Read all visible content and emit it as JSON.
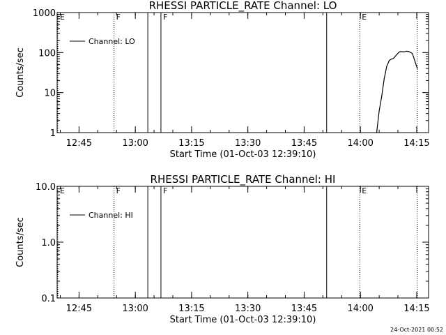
{
  "footer": {
    "timestamp": "24-Oct-2021 00:52"
  },
  "chart_data": [
    {
      "type": "line",
      "title": "RHESSI PARTICLE_RATE Channel: LO",
      "xlabel": "Start Time (01-Oct-03 12:39:10)",
      "ylabel": "Counts/sec",
      "yscale": "log",
      "xlim": [
        "12:39:10",
        "14:18:10"
      ],
      "ylim": [
        1,
        1000
      ],
      "yticks": [
        1,
        10,
        100,
        1000
      ],
      "ytick_labels": [
        "1",
        "10",
        "100",
        "1000"
      ],
      "xticks": [
        "12:45",
        "13:00",
        "13:15",
        "13:30",
        "13:45",
        "14:00",
        "14:15"
      ],
      "legend": {
        "label": "Channel: LO",
        "position": "top-left"
      },
      "grid": false,
      "markers": [
        {
          "time": "12:39:10",
          "label": "E",
          "style": "dotted"
        },
        {
          "time": "12:54:20",
          "label": "F",
          "style": "dotted"
        },
        {
          "time": "13:03:20",
          "label": "",
          "style": "solid"
        },
        {
          "time": "13:06:50",
          "label": "F",
          "style": "solid"
        },
        {
          "time": "13:51:00",
          "label": "",
          "style": "solid"
        },
        {
          "time": "13:59:50",
          "label": "E",
          "style": "dotted"
        },
        {
          "time": "14:15:10",
          "label": "",
          "style": "dotted"
        }
      ],
      "series": [
        {
          "name": "Channel: LO",
          "x": [
            "14:04:20",
            "14:05:00",
            "14:05:40",
            "14:06:20",
            "14:07:00",
            "14:07:40",
            "14:08:10",
            "14:08:50",
            "14:09:30",
            "14:10:10",
            "14:10:40",
            "14:11:30",
            "14:12:20",
            "14:13:00",
            "14:13:50",
            "14:14:30",
            "14:15:10"
          ],
          "values": [
            1,
            3.5,
            8,
            22,
            45,
            63,
            68,
            72,
            85,
            100,
            106,
            104,
            108,
            105,
            95,
            62,
            40
          ]
        }
      ]
    },
    {
      "type": "line",
      "title": "RHESSI PARTICLE_RATE Channel: HI",
      "xlabel": "Start Time (01-Oct-03 12:39:10)",
      "ylabel": "Counts/sec",
      "yscale": "log",
      "xlim": [
        "12:39:10",
        "14:18:10"
      ],
      "ylim": [
        0.1,
        10
      ],
      "yticks": [
        0.1,
        1,
        10
      ],
      "ytick_labels": [
        "0.1",
        "1.0",
        "10.0"
      ],
      "xticks": [
        "12:45",
        "13:00",
        "13:15",
        "13:30",
        "13:45",
        "14:00",
        "14:15"
      ],
      "legend": {
        "label": "Channel: HI",
        "position": "top-left"
      },
      "grid": false,
      "markers": [
        {
          "time": "12:39:10",
          "label": "E",
          "style": "dotted"
        },
        {
          "time": "12:54:20",
          "label": "F",
          "style": "dotted"
        },
        {
          "time": "13:03:20",
          "label": "",
          "style": "solid"
        },
        {
          "time": "13:06:50",
          "label": "F",
          "style": "solid"
        },
        {
          "time": "13:51:00",
          "label": "",
          "style": "solid"
        },
        {
          "time": "13:59:50",
          "label": "E",
          "style": "dotted"
        },
        {
          "time": "14:15:10",
          "label": "",
          "style": "dotted"
        }
      ],
      "series": [
        {
          "name": "Channel: HI",
          "x": [],
          "values": []
        }
      ]
    }
  ]
}
